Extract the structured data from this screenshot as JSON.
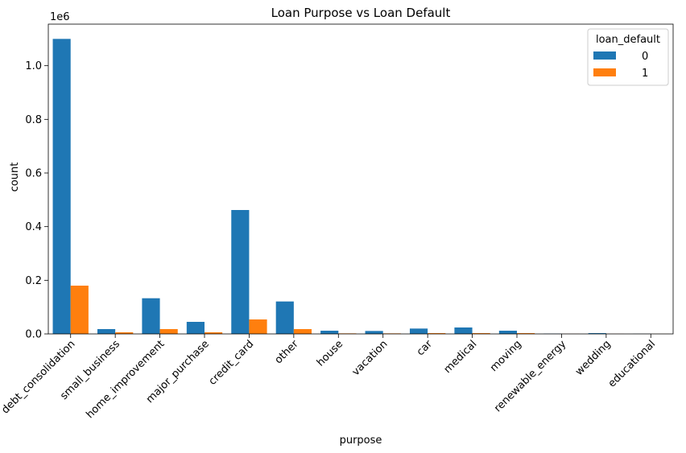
{
  "chart_data": {
    "type": "bar",
    "title": "Loan Purpose vs Loan Default",
    "xlabel": "purpose",
    "ylabel": "count",
    "y_offset_label": "1e6",
    "ylim": [
      0,
      1.155
    ],
    "y_ticks": [
      "0.0",
      "0.2",
      "0.4",
      "0.6",
      "0.8",
      "1.0"
    ],
    "grid": false,
    "legend_position": "top-right",
    "legend_title": "loan_default",
    "categories": [
      "debt_consolidation",
      "small_business",
      "home_improvement",
      "major_purchase",
      "credit_card",
      "other",
      "house",
      "vacation",
      "car",
      "medical",
      "moving",
      "renewable_energy",
      "wedding",
      "educational"
    ],
    "series": [
      {
        "name": "0",
        "color": "#1f77b4",
        "values": [
          1.1,
          0.018,
          0.133,
          0.045,
          0.462,
          0.121,
          0.012,
          0.011,
          0.02,
          0.024,
          0.012,
          0.001,
          0.003,
          0.0005
        ]
      },
      {
        "name": "1",
        "color": "#ff7f0e",
        "values": [
          0.18,
          0.006,
          0.018,
          0.006,
          0.054,
          0.018,
          0.002,
          0.002,
          0.003,
          0.003,
          0.003,
          0.0003,
          0.0003,
          0.0002
        ]
      }
    ]
  }
}
